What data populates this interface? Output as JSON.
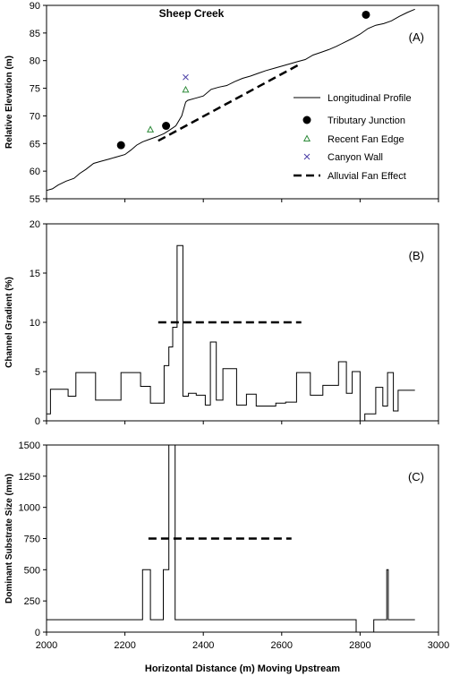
{
  "x_axis_label": "Horizontal Distance (m) Moving Upstream",
  "chart_data": [
    {
      "type": "line",
      "panel_label": "(A)",
      "title": "Sheep Creek",
      "ylabel": "Relative Elevation (m)",
      "xlim": [
        2000,
        3000
      ],
      "ylim": [
        55,
        90
      ],
      "yticks": [
        55,
        60,
        65,
        70,
        75,
        80,
        85,
        90
      ],
      "series": [
        {
          "name": "Longitudinal Profile",
          "kind": "line",
          "color": "#000000",
          "x": [
            2000,
            2015,
            2030,
            2050,
            2070,
            2085,
            2100,
            2120,
            2140,
            2160,
            2180,
            2200,
            2215,
            2230,
            2245,
            2260,
            2280,
            2300,
            2315,
            2330,
            2345,
            2355,
            2360,
            2380,
            2400,
            2420,
            2440,
            2460,
            2480,
            2500,
            2520,
            2540,
            2560,
            2580,
            2600,
            2620,
            2640,
            2660,
            2680,
            2700,
            2720,
            2740,
            2760,
            2780,
            2800,
            2820,
            2840,
            2860,
            2880,
            2900,
            2920,
            2940
          ],
          "y": [
            56.5,
            56.8,
            57.5,
            58.2,
            58.7,
            59.6,
            60.3,
            61.4,
            61.8,
            62.2,
            62.6,
            63.0,
            63.8,
            64.7,
            65.3,
            65.7,
            66.2,
            66.8,
            67.5,
            68.2,
            70.0,
            72.5,
            72.8,
            73.2,
            73.6,
            74.8,
            75.2,
            75.5,
            76.2,
            76.8,
            77.2,
            77.7,
            78.2,
            78.6,
            79.0,
            79.4,
            79.8,
            80.2,
            81.0,
            81.5,
            82.0,
            82.6,
            83.3,
            84.0,
            84.8,
            85.8,
            86.4,
            86.7,
            87.2,
            88.0,
            88.7,
            89.3
          ]
        },
        {
          "name": "Tributary Junction",
          "kind": "marker",
          "marker": "filled-circle",
          "color": "#000000",
          "x": [
            2190,
            2305,
            2815
          ],
          "y": [
            64.7,
            68.2,
            88.3
          ]
        },
        {
          "name": "Recent Fan Edge",
          "kind": "marker",
          "marker": "open-triangle",
          "color": "#2e8b3a",
          "x": [
            2265,
            2355
          ],
          "y": [
            67.5,
            74.7
          ]
        },
        {
          "name": "Canyon Wall",
          "kind": "marker",
          "marker": "x",
          "color": "#4b3fa6",
          "x": [
            2355
          ],
          "y": [
            77.0
          ]
        },
        {
          "name": "Alluvial Fan Effect",
          "kind": "dashed",
          "color": "#000000",
          "x": [
            2285,
            2645
          ],
          "y": [
            65.5,
            79.3
          ]
        }
      ],
      "legend_position": "right"
    },
    {
      "type": "line",
      "panel_label": "(B)",
      "ylabel": "Channel Gradient (%)",
      "xlim": [
        2000,
        3000
      ],
      "ylim": [
        0,
        20
      ],
      "yticks": [
        0,
        5,
        10,
        15,
        20
      ],
      "series": [
        {
          "kind": "step",
          "color": "#000000",
          "x": [
            2000,
            2010,
            2010,
            2055,
            2055,
            2075,
            2075,
            2125,
            2125,
            2190,
            2190,
            2240,
            2240,
            2265,
            2265,
            2300,
            2300,
            2312,
            2312,
            2322,
            2322,
            2333,
            2333,
            2348,
            2348,
            2362,
            2362,
            2382,
            2382,
            2405,
            2405,
            2418,
            2418,
            2433,
            2433,
            2450,
            2450,
            2485,
            2485,
            2510,
            2510,
            2535,
            2535,
            2585,
            2585,
            2610,
            2610,
            2638,
            2638,
            2673,
            2673,
            2705,
            2705,
            2745,
            2745,
            2765,
            2765,
            2780,
            2780,
            2800,
            2800,
            2812,
            2812,
            2840,
            2840,
            2858,
            2858,
            2870,
            2870,
            2885,
            2885,
            2897,
            2897,
            2897,
            2897,
            2940
          ],
          "y": [
            0.7,
            0.7,
            3.2,
            3.2,
            2.5,
            2.5,
            4.9,
            4.9,
            2.1,
            2.1,
            4.9,
            4.9,
            3.5,
            3.5,
            1.8,
            1.8,
            5.6,
            5.6,
            7.5,
            7.5,
            9.5,
            9.5,
            17.8,
            17.8,
            2.5,
            2.5,
            2.8,
            2.8,
            2.6,
            2.6,
            1.6,
            1.6,
            8.0,
            8.0,
            2.1,
            2.1,
            5.3,
            5.3,
            1.6,
            1.6,
            2.7,
            2.7,
            1.5,
            1.5,
            1.8,
            1.8,
            1.9,
            1.9,
            4.9,
            4.9,
            2.6,
            2.6,
            3.6,
            3.6,
            6.0,
            6.0,
            2.8,
            2.8,
            5.0,
            5.0,
            0.0,
            0.0,
            0.7,
            0.7,
            3.4,
            3.4,
            1.5,
            1.5,
            4.9,
            4.9,
            1.0,
            1.0,
            3.1,
            3.1,
            3.1,
            3.1
          ]
        },
        {
          "kind": "dashed",
          "color": "#000000",
          "x": [
            2285,
            2650
          ],
          "y": [
            10,
            10
          ]
        }
      ]
    },
    {
      "type": "line",
      "panel_label": "(C)",
      "ylabel": "Dominant Substrate Size (mm)",
      "xlim": [
        2000,
        3000
      ],
      "ylim": [
        0,
        1500
      ],
      "yticks": [
        0,
        250,
        500,
        750,
        1000,
        1250,
        1500
      ],
      "series": [
        {
          "kind": "step",
          "color": "#000000",
          "x": [
            2000,
            2245,
            2245,
            2265,
            2265,
            2298,
            2298,
            2312,
            2312,
            2328,
            2328,
            2790,
            2790,
            2835,
            2835,
            2868,
            2868,
            2872,
            2872,
            2940
          ],
          "y": [
            100,
            100,
            500,
            500,
            100,
            100,
            500,
            500,
            1500,
            1500,
            100,
            100,
            0,
            0,
            100,
            100,
            500,
            500,
            100,
            100
          ]
        },
        {
          "kind": "dashed",
          "color": "#000000",
          "x": [
            2260,
            2625
          ],
          "y": [
            750,
            750
          ]
        }
      ]
    }
  ]
}
